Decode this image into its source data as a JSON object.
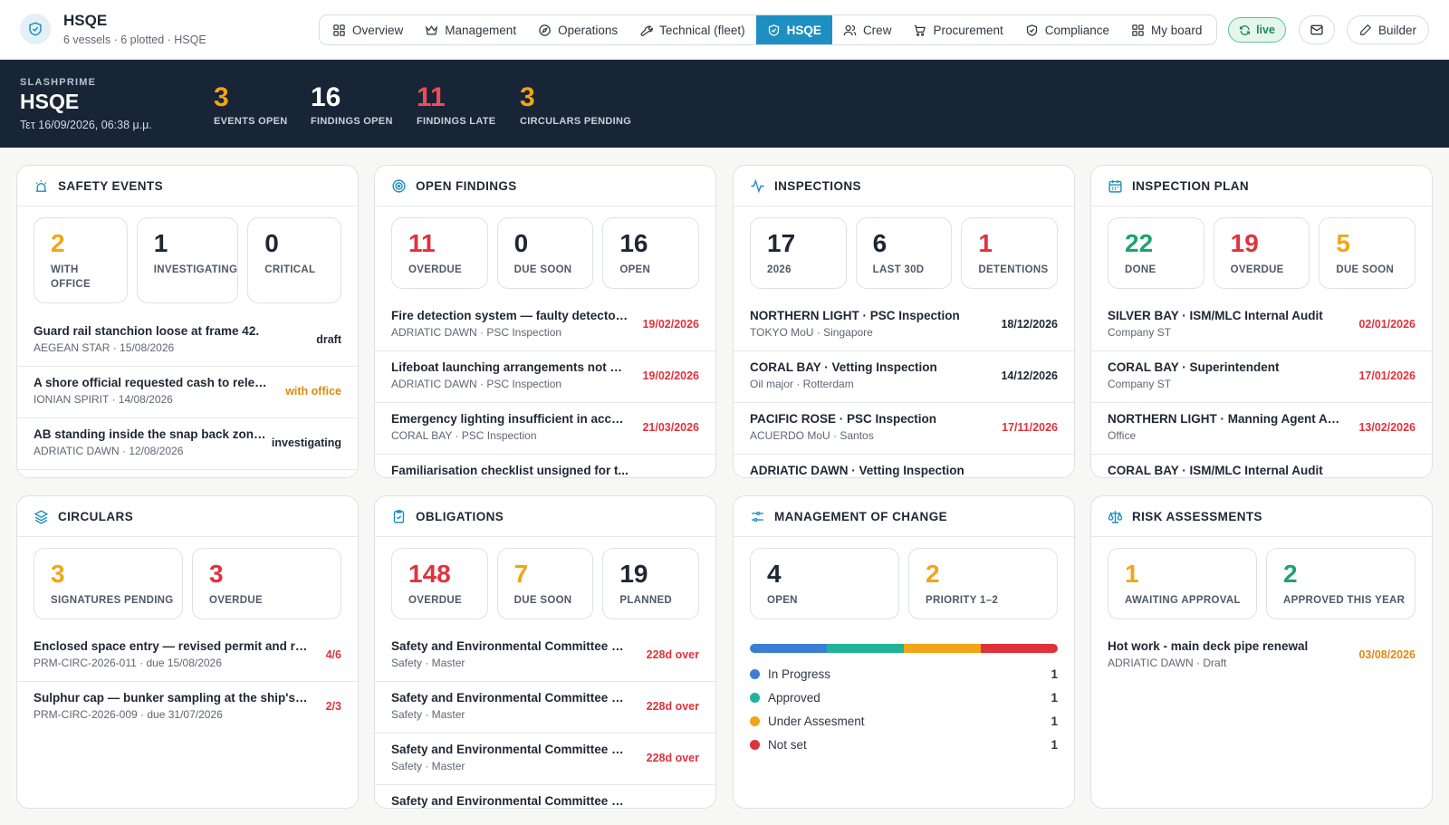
{
  "app": {
    "name": "HSQE",
    "subtitle": "6 vessels · 6 plotted · HSQE"
  },
  "nav": [
    {
      "label": "Overview",
      "icon": "grid-icon"
    },
    {
      "label": "Management",
      "icon": "crown-icon"
    },
    {
      "label": "Operations",
      "icon": "compass-icon"
    },
    {
      "label": "Technical (fleet)",
      "icon": "wrench-icon"
    },
    {
      "label": "HSQE",
      "icon": "shield-icon",
      "active": true
    },
    {
      "label": "Crew",
      "icon": "users-icon"
    },
    {
      "label": "Procurement",
      "icon": "cart-icon"
    },
    {
      "label": "Compliance",
      "icon": "shield-icon"
    },
    {
      "label": "My board",
      "icon": "grid-icon"
    }
  ],
  "toolbar": {
    "live_label": "live",
    "builder_label": "Builder"
  },
  "header": {
    "org": "SLASHPRIME",
    "title": "HSQE",
    "datetime": "Τετ 16/09/2026, 06:38 μ.μ.",
    "stats": [
      {
        "value": "3",
        "label": "EVENTS OPEN",
        "color": "#f2a516"
      },
      {
        "value": "16",
        "label": "FINDINGS OPEN",
        "color": "#ffffff"
      },
      {
        "value": "11",
        "label": "FINDINGS LATE",
        "color": "#ef4c56"
      },
      {
        "value": "3",
        "label": "CIRCULARS PENDING",
        "color": "#f2a516"
      }
    ]
  },
  "colors": {
    "accent": "#1e8fc2",
    "red": "#e0323c",
    "amber": "#f2a516",
    "green": "#1fa36b",
    "band": "#182536"
  },
  "cards": {
    "safety_events": {
      "title": "SAFETY EVENTS",
      "stats": [
        {
          "value": "2",
          "label": "WITH OFFICE"
        },
        {
          "value": "1",
          "label": "INVESTIGATING"
        },
        {
          "value": "0",
          "label": "CRITICAL"
        }
      ],
      "rows": [
        {
          "title": "Guard rail stanchion loose at frame 42.",
          "sub": "AEGEAN STAR · 15/08/2026",
          "status": "draft"
        },
        {
          "title": "A shore official requested cash to release...",
          "sub": "IONIAN SPIRIT · 14/08/2026",
          "status": "with office"
        },
        {
          "title": "AB standing inside the snap back zone ...",
          "sub": "ADRIATIC DAWN · 12/08/2026",
          "status": "investigating"
        }
      ]
    },
    "open_findings": {
      "title": "OPEN FINDINGS",
      "stats": [
        {
          "value": "11",
          "label": "OVERDUE"
        },
        {
          "value": "0",
          "label": "DUE SOON"
        },
        {
          "value": "16",
          "label": "OPEN"
        }
      ],
      "rows": [
        {
          "title": "Fire detection system — faulty detector i...",
          "sub": "ADRIATIC DAWN · PSC Inspection",
          "date": "19/02/2026"
        },
        {
          "title": "Lifeboat launching arrangements not op...",
          "sub": "ADRIATIC DAWN · PSC Inspection",
          "date": "19/02/2026"
        },
        {
          "title": "Emergency lighting insufficient in acco...",
          "sub": "CORAL BAY · PSC Inspection",
          "date": "21/03/2026"
        },
        {
          "title": "Familiarisation checklist unsigned for t..."
        }
      ]
    },
    "inspections": {
      "title": "INSPECTIONS",
      "stats": [
        {
          "value": "17",
          "label": "2026"
        },
        {
          "value": "6",
          "label": "LAST 30D"
        },
        {
          "value": "1",
          "label": "DETENTIONS"
        }
      ],
      "rows": [
        {
          "title": "NORTHERN LIGHT · PSC Inspection",
          "sub": "TOKYO MoU · Singapore",
          "date": "18/12/2026"
        },
        {
          "title": "CORAL BAY · Vetting Inspection",
          "sub": "Oil major · Rotterdam",
          "date": "14/12/2026"
        },
        {
          "title": "PACIFIC ROSE · PSC Inspection",
          "sub": "ACUERDO MoU · Santos",
          "date": "17/11/2026"
        },
        {
          "title": "ADRIATIC DAWN · Vetting Inspection"
        }
      ]
    },
    "inspection_plan": {
      "title": "INSPECTION PLAN",
      "stats": [
        {
          "value": "22",
          "label": "DONE"
        },
        {
          "value": "19",
          "label": "OVERDUE"
        },
        {
          "value": "5",
          "label": "DUE SOON"
        }
      ],
      "rows": [
        {
          "title": "SILVER BAY · ISM/MLC Internal Audit",
          "sub": "Company ST",
          "date": "02/01/2026"
        },
        {
          "title": "CORAL BAY · Superintendent",
          "sub": "Company ST",
          "date": "17/01/2026"
        },
        {
          "title": "NORTHERN LIGHT · Manning Agent Audit",
          "sub": "Office",
          "date": "13/02/2026"
        },
        {
          "title": "CORAL BAY · ISM/MLC Internal Audit"
        }
      ]
    },
    "circulars": {
      "title": "CIRCULARS",
      "stats": [
        {
          "value": "3",
          "label": "SIGNATURES PENDING"
        },
        {
          "value": "3",
          "label": "OVERDUE"
        }
      ],
      "rows": [
        {
          "title": "Enclosed space entry — revised permit and resc...",
          "sub": "PRM-CIRC-2026-011 · due 15/08/2026",
          "progress": "4/6"
        },
        {
          "title": "Sulphur cap — bunker sampling at the ship's ma...",
          "sub": "PRM-CIRC-2026-009 · due 31/07/2026",
          "progress": "2/3"
        }
      ]
    },
    "obligations": {
      "title": "OBLIGATIONS",
      "stats": [
        {
          "value": "148",
          "label": "OVERDUE"
        },
        {
          "value": "7",
          "label": "DUE SOON"
        },
        {
          "value": "19",
          "label": "PLANNED"
        }
      ],
      "rows": [
        {
          "title": "Safety and Environmental Committee Me...",
          "sub": "Safety · Master",
          "over": "228d over"
        },
        {
          "title": "Safety and Environmental Committee Me...",
          "sub": "Safety · Master",
          "over": "228d over"
        },
        {
          "title": "Safety and Environmental Committee Me...",
          "sub": "Safety · Master",
          "over": "228d over"
        },
        {
          "title": "Safety and Environmental Committee Me..."
        }
      ]
    },
    "moc": {
      "title": "MANAGEMENT OF CHANGE",
      "stats": [
        {
          "value": "4",
          "label": "OPEN"
        },
        {
          "value": "2",
          "label": "PRIORITY 1–2"
        }
      ],
      "breakdown": [
        {
          "label": "In Progress",
          "count": "1",
          "color": "#3b7fd4"
        },
        {
          "label": "Approved",
          "count": "1",
          "color": "#1fb39a"
        },
        {
          "label": "Under Assesment",
          "count": "1",
          "color": "#f2a516"
        },
        {
          "label": "Not set",
          "count": "1",
          "color": "#e0323c"
        }
      ]
    },
    "risk": {
      "title": "RISK ASSESSMENTS",
      "stats": [
        {
          "value": "1",
          "label": "AWAITING APPROVAL"
        },
        {
          "value": "2",
          "label": "APPROVED THIS YEAR"
        }
      ],
      "rows": [
        {
          "title": "Hot work - main deck pipe renewal",
          "sub": "ADRIATIC DAWN · Draft",
          "date": "03/08/2026"
        }
      ]
    }
  }
}
